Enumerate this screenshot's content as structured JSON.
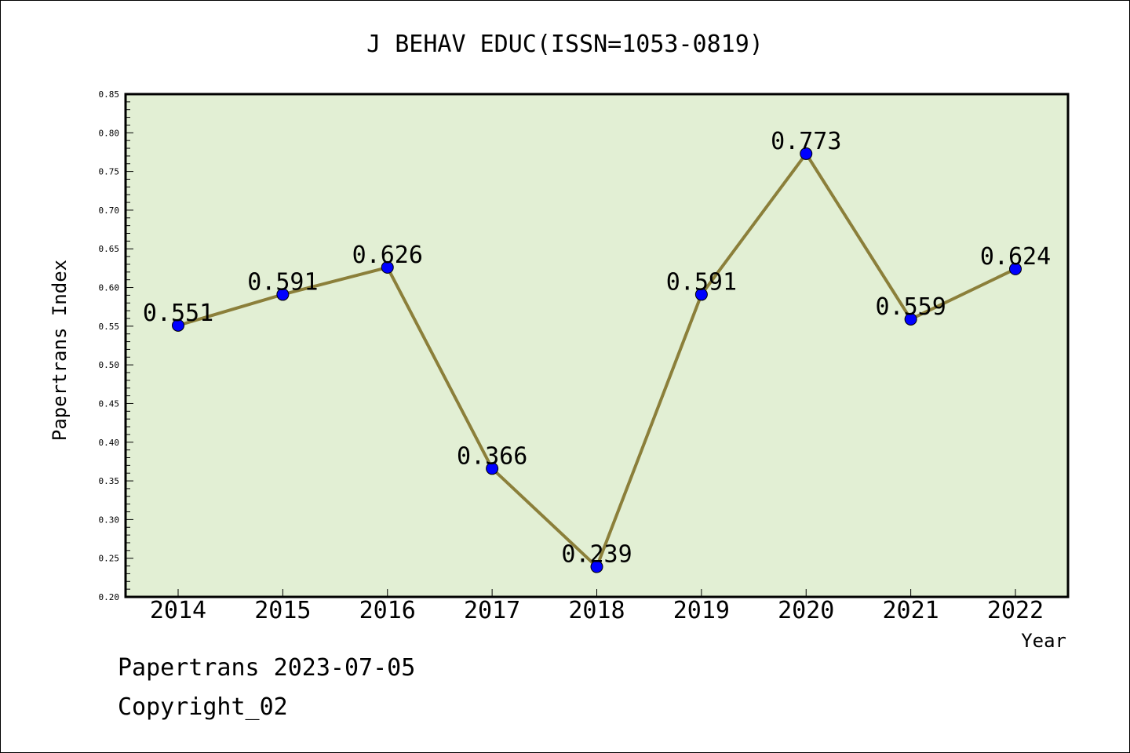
{
  "chart_data": {
    "type": "line",
    "title": "J BEHAV EDUC(ISSN=1053-0819)",
    "xlabel": "Year",
    "ylabel": "Papertrans Index",
    "categories": [
      "2014",
      "2015",
      "2016",
      "2017",
      "2018",
      "2019",
      "2020",
      "2021",
      "2022"
    ],
    "values": [
      0.551,
      0.591,
      0.626,
      0.366,
      0.239,
      0.591,
      0.773,
      0.559,
      0.624
    ],
    "data_labels": [
      "0.551",
      "0.591",
      "0.626",
      "0.366",
      "0.239",
      "0.591",
      "0.773",
      "0.559",
      "0.624"
    ],
    "ylim": [
      0.2,
      0.85
    ],
    "y_ticks": [
      "0.20",
      "0.25",
      "0.30",
      "0.35",
      "0.40",
      "0.45",
      "0.50",
      "0.55",
      "0.60",
      "0.65",
      "0.70",
      "0.75",
      "0.80",
      "0.85"
    ],
    "grid": false,
    "legend": "none",
    "colors": {
      "plot_background": "#e2efd4",
      "line": "#8b7f3a",
      "marker": "#0000ff"
    }
  },
  "footer": {
    "date_text": "Papertrans 2023-07-05",
    "copyright_text": "Copyright_02"
  }
}
